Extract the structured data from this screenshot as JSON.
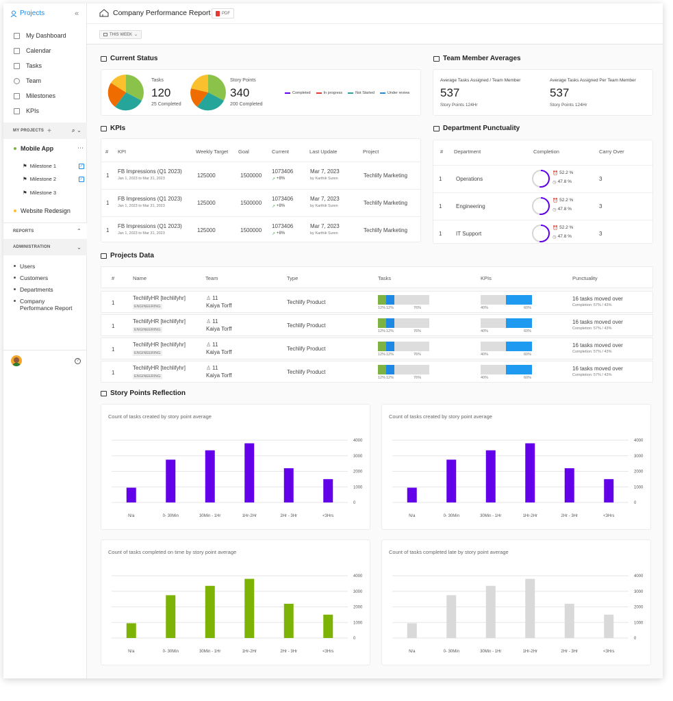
{
  "sidebar": {
    "brand": "Projects",
    "nav": [
      {
        "label": "My Dashboard",
        "icon": "grid-icon"
      },
      {
        "label": "Calendar",
        "icon": "calendar-icon"
      },
      {
        "label": "Tasks",
        "icon": "tasks-icon"
      },
      {
        "label": "Team",
        "icon": "team-icon"
      },
      {
        "label": "Milestones",
        "icon": "flag-icon"
      },
      {
        "label": "KPIs",
        "icon": "chart-icon"
      }
    ],
    "my_projects": "MY PROJECTS",
    "projects": [
      {
        "label": "Mobile App",
        "color": "#7cb342"
      },
      {
        "label": "Website Redesign",
        "color": "#fbc02d"
      }
    ],
    "milestones": [
      "Milestone 1",
      "Milestone 2",
      "Milestone 3"
    ],
    "reports": "REPORTS",
    "administration": "ADMINISTRATION",
    "admin_items": [
      "Users",
      "Customers",
      "Departments",
      "Company Performance Report"
    ]
  },
  "header": {
    "title": "Company Performance Report",
    "pdf_label": "PDF",
    "week_label": "THIS WEEK"
  },
  "current_status": {
    "title": "Current Status",
    "tasks": {
      "label": "Tasks",
      "value": "120",
      "sub": "25 Completed"
    },
    "story": {
      "label": "Story Points",
      "value": "340",
      "sub": "200 Completed"
    },
    "legend": [
      {
        "label": "Completed",
        "color": "#6200ea"
      },
      {
        "label": "In progress",
        "color": "#e53935"
      },
      {
        "label": "Not Started",
        "color": "#26a69a"
      },
      {
        "label": "Under review",
        "color": "#1e88e5"
      }
    ]
  },
  "team_avg": {
    "title": "Team Member Averages",
    "items": [
      {
        "label": "Average Tasks Assigned / Team Member",
        "value": "537",
        "sub": "Story Points 124Hr"
      },
      {
        "label": "Average Tasks Assigned Per Team Member",
        "value": "537",
        "sub": "Story Points 124Hr"
      }
    ]
  },
  "kpis": {
    "title": "KPIs",
    "headers": [
      "#",
      "KPI",
      "Weekly Target",
      "Goal",
      "Current",
      "Last Update",
      "Project"
    ],
    "rows": [
      {
        "n": "1",
        "name": "FB Impressions (Q1 2023)",
        "range": "Jan 1, 2023 to Mar 31, 2023",
        "target": "125000",
        "goal": "1500000",
        "current": "1073406",
        "delta": "+8%",
        "date": "Mar 7, 2023",
        "by": "by Karthik Suren",
        "project": "Techlify Marketing"
      },
      {
        "n": "1",
        "name": "FB Impressions (Q1 2023)",
        "range": "Jan 1, 2023 to Mar 31, 2023",
        "target": "125000",
        "goal": "1500000",
        "current": "1073406",
        "delta": "+8%",
        "date": "Mar 7, 2023",
        "by": "by Karthik Suren",
        "project": "Techlify Marketing"
      },
      {
        "n": "1",
        "name": "FB Impressions (Q1 2023)",
        "range": "Jan 1, 2023 to Mar 31, 2023",
        "target": "125000",
        "goal": "1500000",
        "current": "1073406",
        "delta": "+8%",
        "date": "Mar 7, 2023",
        "by": "by Karthik Suren",
        "project": "Techlify Marketing"
      }
    ]
  },
  "punctuality": {
    "title": "Department Punctuality",
    "headers": [
      "#",
      "Department",
      "Completion",
      "Carry Over"
    ],
    "rows": [
      {
        "n": "1",
        "dept": "Operations",
        "on": "52.2 %",
        "late": "47.8 %",
        "carry": "3",
        "pct": 0.522
      },
      {
        "n": "1",
        "dept": "Engineering",
        "on": "52.2 %",
        "late": "47.8 %",
        "carry": "3",
        "pct": 0.522
      },
      {
        "n": "1",
        "dept": "IT Support",
        "on": "52.2 %",
        "late": "47.8 %",
        "carry": "3",
        "pct": 0.522
      }
    ]
  },
  "projects_data": {
    "title": "Projects Data",
    "headers": [
      "#",
      "Name",
      "Team",
      "Type",
      "Tasks",
      "KPIs",
      "Punctuality"
    ],
    "rows": [
      {
        "n": "1",
        "name": "TechlifyHR [techlifyhr]",
        "tag": "ENGINEERING",
        "count": "11",
        "lead": "Kaiya Torff",
        "type": "Techlify Product",
        "t1": "12%",
        "t2": "12%",
        "t3": "76%",
        "k1": "40%",
        "k2": "60%",
        "punct": "16 tasks moved over",
        "comp": "Completion: 57% / 43%"
      },
      {
        "n": "1",
        "name": "TechlifyHR [techlifyhr]",
        "tag": "ENGINEERING",
        "count": "11",
        "lead": "Kaiya Torff",
        "type": "Techlify Product",
        "t1": "12%",
        "t2": "12%",
        "t3": "76%",
        "k1": "40%",
        "k2": "60%",
        "punct": "16 tasks moved over",
        "comp": "Completion: 57% / 43%"
      },
      {
        "n": "1",
        "name": "TechlifyHR [techlifyhr]",
        "tag": "ENGINEERING",
        "count": "11",
        "lead": "Kaiya Torff",
        "type": "Techlify Product",
        "t1": "12%",
        "t2": "12%",
        "t3": "76%",
        "k1": "40%",
        "k2": "60%",
        "punct": "16 tasks moved over",
        "comp": "Completion: 57% / 43%"
      },
      {
        "n": "1",
        "name": "TechlifyHR [techlifyhr]",
        "tag": "ENGINEERING",
        "count": "11",
        "lead": "Kaiya Torff",
        "type": "Techlify Product",
        "t1": "12%",
        "t2": "12%",
        "t3": "76%",
        "k1": "40%",
        "k2": "60%",
        "punct": "16 tasks moved over",
        "comp": "Completion: 57% / 43%"
      }
    ]
  },
  "story_title": "Story Points Reflection",
  "chart_data": [
    {
      "type": "bar",
      "title": "Count of tasks created by story point average",
      "categories": [
        "N/a",
        "0- 30Min",
        "30Min - 1Hr",
        "1Hr-2Hr",
        "2Hr - 3Hr",
        "<3Hrs"
      ],
      "values": [
        950,
        2750,
        3350,
        3800,
        2200,
        1500
      ],
      "yticks": [
        0,
        1000,
        2000,
        3000,
        4000
      ],
      "ylim": [
        0,
        4000
      ],
      "color": "#6200ea"
    },
    {
      "type": "bar",
      "title": "Count of tasks created by story point average",
      "categories": [
        "N/a",
        "0- 30Min",
        "30Min - 1Hr",
        "1Hr-2Hr",
        "2Hr - 3Hr",
        "<3Hrs"
      ],
      "values": [
        950,
        2750,
        3350,
        3800,
        2200,
        1500
      ],
      "yticks": [
        0,
        1000,
        2000,
        3000,
        4000
      ],
      "ylim": [
        0,
        4000
      ],
      "color": "#6200ea"
    },
    {
      "type": "bar",
      "title": "Count of tasks completed on time by story point average",
      "categories": [
        "N/a",
        "0- 30Min",
        "30Min - 1Hr",
        "1Hr-2Hr",
        "2Hr - 3Hr",
        "<3Hrs"
      ],
      "values": [
        950,
        2750,
        3350,
        3800,
        2200,
        1500
      ],
      "yticks": [
        0,
        1000,
        2000,
        3000,
        4000
      ],
      "ylim": [
        0,
        4000
      ],
      "color": "#7cb305"
    },
    {
      "type": "bar",
      "title": "Count of tasks completed late by story point average",
      "categories": [
        "N/a",
        "0- 30Min",
        "30Min - 1Hr",
        "1Hr-2Hr",
        "2Hr - 3Hr",
        "<3Hrs"
      ],
      "values": [
        950,
        2750,
        3350,
        3800,
        2200,
        1500
      ],
      "yticks": [
        0,
        1000,
        2000,
        3000,
        4000
      ],
      "ylim": [
        0,
        4000
      ],
      "color": "#d9d9d9"
    }
  ]
}
